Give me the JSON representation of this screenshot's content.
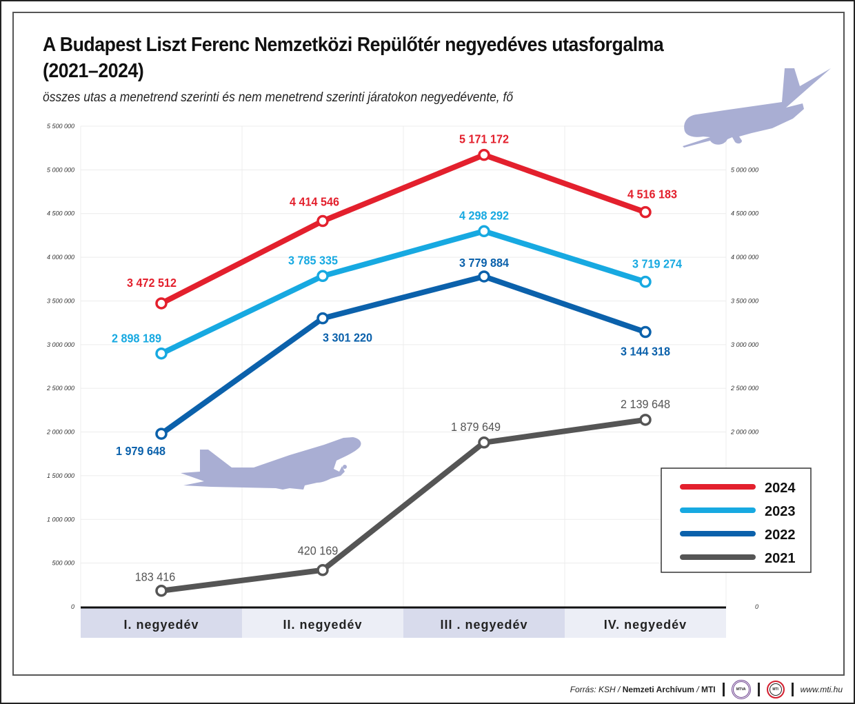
{
  "title_line1": "A Budapest Liszt Ferenc Nemzetközi Repülőtér negyedéves utasforgalma",
  "title_line2": "(2021–2024)",
  "subtitle": "összes utas a menetrend szerinti és nem menetrend szerinti járatokon negyedévente, fő",
  "footer": {
    "source_prefix": "Forrás: KSH / ",
    "source_bold": "Nemzeti Archívum",
    "source_sep": " / ",
    "source_mti": "MTI",
    "logo_mtva": "MTVA",
    "logo_mti": "MTI",
    "website": "www.mti.hu"
  },
  "chart_data": {
    "type": "line",
    "title": "A Budapest Liszt Ferenc Nemzetközi Repülőtér negyedéves utasforgalma (2021–2024)",
    "xlabel": "",
    "ylabel": "",
    "categories": [
      "I. negyedév",
      "II. negyedév",
      "III . negyedév",
      "IV. negyedév"
    ],
    "ylim": [
      0,
      5500000
    ],
    "left_ticks": [
      "0",
      "500 000",
      "1 000 000",
      "1 500 000",
      "2 000 000",
      "2 500 000",
      "3 000 000",
      "3 500 000",
      "4 000 000",
      "4 500 000",
      "5 000 000",
      "5 500 000"
    ],
    "right_ticks": [
      "0",
      "2 000 000",
      "2 500 000",
      "3 000 000",
      "3 500 000",
      "4 000 000",
      "4 500 000",
      "5 000 000"
    ],
    "tick_values": [
      0,
      500000,
      1000000,
      1500000,
      2000000,
      2500000,
      3000000,
      3500000,
      4000000,
      4500000,
      5000000,
      5500000
    ],
    "right_tick_values": [
      0,
      2000000,
      2500000,
      3000000,
      3500000,
      4000000,
      4500000,
      5000000
    ],
    "grid": true,
    "legend_position": "bottom-right",
    "series": [
      {
        "name": "2024",
        "color": "#e3202d",
        "values": [
          3472512,
          4414546,
          5171172,
          4516183
        ],
        "labels": [
          "3 472 512",
          "4 414 546",
          "5 171 172",
          "4 516 183"
        ],
        "label_pos": [
          "above",
          "above",
          "above",
          "above"
        ]
      },
      {
        "name": "2023",
        "color": "#17a9e1",
        "values": [
          2898189,
          3785335,
          4298292,
          3719274
        ],
        "labels": [
          "2 898 189",
          "3 785 335",
          "4 298 292",
          "3 719 274"
        ],
        "label_pos": [
          "left-above",
          "above",
          "above",
          "above"
        ]
      },
      {
        "name": "2022",
        "color": "#0b61ab",
        "values": [
          1979648,
          3301220,
          3779884,
          3144318
        ],
        "labels": [
          "1 979 648",
          "3 301 220",
          "3 779 884",
          "3 144 318"
        ],
        "label_pos": [
          "below",
          "below-right",
          "above",
          "below"
        ]
      },
      {
        "name": "2021",
        "color": "#555555",
        "values": [
          183416,
          420169,
          1879649,
          2139648
        ],
        "labels": [
          "183 416",
          "420 169",
          "1 879 649",
          "2 139 648"
        ],
        "label_pos": [
          "above",
          "above",
          "above",
          "above"
        ]
      }
    ],
    "category_band_colors": [
      "#d8dbec",
      "#eceef6",
      "#d8dbec",
      "#eceef6"
    ],
    "decoration_color": "#a9aed3"
  }
}
